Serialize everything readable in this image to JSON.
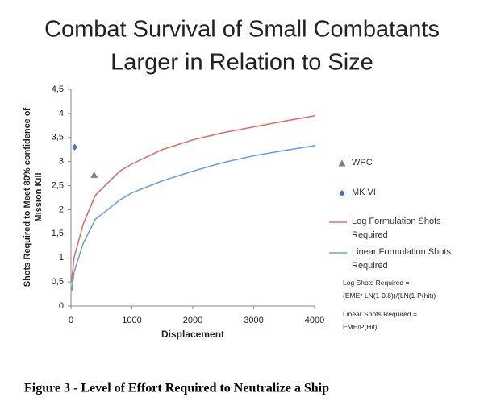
{
  "chart_data": {
    "type": "line",
    "title": [
      "Combat Survival of Small Combatants",
      "Larger in Relation to Size"
    ],
    "x_label": "Displacement",
    "y_label": [
      "Shots Required to Meet 80% confidence of",
      "Mission Kill"
    ],
    "xlim": [
      0,
      4000
    ],
    "xticks": [
      0,
      1000,
      2000,
      3000,
      4000
    ],
    "ylim": [
      0,
      4.5
    ],
    "yticks": [
      0,
      {
        "value": 0.5,
        "label": "0,5"
      },
      1,
      {
        "value": 1.5,
        "label": "1,5"
      },
      2,
      {
        "value": 2.5,
        "label": "2,5"
      },
      3,
      {
        "value": 3.5,
        "label": "3,5"
      },
      4,
      {
        "value": 4.5,
        "label": "4,5"
      }
    ],
    "series": [
      {
        "name": "WPC",
        "marker": "triangle",
        "color": "#7a7d8c",
        "x": [
          380
        ],
        "values": [
          2.72
        ]
      },
      {
        "name": "MK VI",
        "marker": "diamond",
        "color": "#4a6fb5",
        "x": [
          60
        ],
        "values": [
          3.3
        ]
      },
      {
        "name": "Log Formulation Shots Required",
        "marker": "line",
        "color": "#d9716c",
        "x": [
          10,
          50,
          200,
          400,
          600,
          800,
          1000,
          1500,
          2000,
          2500,
          3000,
          3500,
          4000
        ],
        "values": [
          0.5,
          1.0,
          1.7,
          2.3,
          2.55,
          2.8,
          2.95,
          3.25,
          3.45,
          3.6,
          3.72,
          3.84,
          3.95
        ]
      },
      {
        "name": "Linear Formulation Shots Required",
        "marker": "line",
        "color": "#6f9fd6",
        "x": [
          10,
          50,
          200,
          400,
          600,
          800,
          1000,
          1500,
          2000,
          2500,
          3000,
          3500,
          4000
        ],
        "values": [
          0.3,
          0.7,
          1.3,
          1.8,
          2.0,
          2.2,
          2.35,
          2.6,
          2.8,
          2.98,
          3.12,
          3.23,
          3.33
        ]
      }
    ],
    "annotations": [
      [
        "Log Shots Required =",
        "(EME* LN(1-0.8))/(LN(1-P(hit))"
      ],
      [
        "Linear Shots Required =",
        "EME/P(Hit)"
      ]
    ],
    "caption": "Figure 3 - Level of Effort Required to Neutralize a Ship"
  }
}
